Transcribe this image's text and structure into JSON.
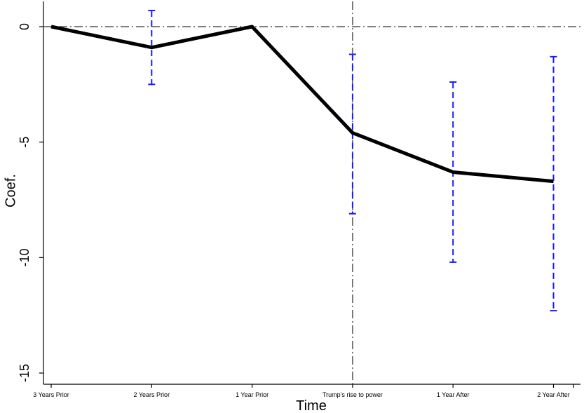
{
  "chart_data": {
    "type": "line",
    "title": "",
    "xlabel": "Time",
    "ylabel": "Coef.",
    "categories": [
      "3 Years Prior",
      "2 Years Prior",
      "1 Year Prior",
      "Trump's rise to power",
      "1 Year After",
      "2 Year After"
    ],
    "series": [
      {
        "values": [
          0,
          -0.9,
          0,
          -4.6,
          -6.3,
          -6.7
        ],
        "ci_low": [
          0,
          -2.5,
          0,
          -8.1,
          -10.2,
          -12.3
        ],
        "ci_high": [
          0,
          0.7,
          0,
          -1.2,
          -2.4,
          -1.3
        ]
      }
    ],
    "ylim": [
      -15,
      0
    ],
    "yticks": [
      0,
      -5,
      -10,
      -15
    ],
    "ytick_labels": [
      "0",
      "-5",
      "-10",
      "-15"
    ],
    "reference_lines": {
      "horizontal_at_y": 0,
      "vertical_at_category": "Trump's rise to power",
      "style": "dash-dot"
    },
    "grid": false,
    "legend": "none",
    "colors": {
      "line": "#000000",
      "ci": "#1a1aff",
      "reference": "#555555"
    }
  }
}
